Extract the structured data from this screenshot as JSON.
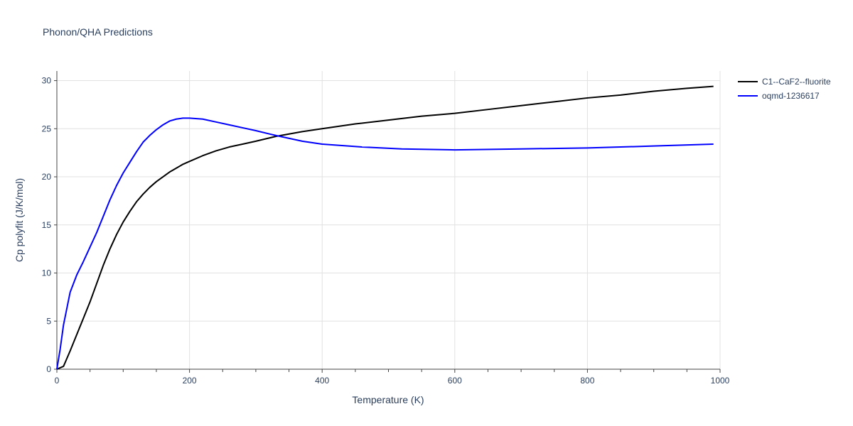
{
  "chart_data": {
    "type": "line",
    "title": "Phonon/QHA Predictions",
    "xlabel": "Temperature (K)",
    "ylabel": "Cp polyfit (J/K/mol)",
    "xlim": [
      0,
      1000
    ],
    "ylim": [
      0,
      31
    ],
    "x_ticks": [
      0,
      200,
      400,
      600,
      800,
      1000
    ],
    "x_minor_ticks": [
      50,
      100,
      150,
      250,
      300,
      350,
      450,
      500,
      550,
      650,
      700,
      750,
      850,
      900,
      950
    ],
    "y_ticks": [
      0,
      5,
      10,
      15,
      20,
      25,
      30
    ],
    "grid": true,
    "legend_position": "top-right",
    "series": [
      {
        "name": "C1--CaF2--fluorite",
        "color": "#000000",
        "x": [
          0,
          10,
          20,
          30,
          40,
          50,
          60,
          70,
          80,
          90,
          100,
          110,
          120,
          130,
          140,
          150,
          160,
          170,
          180,
          190,
          200,
          220,
          240,
          260,
          280,
          300,
          330,
          370,
          400,
          450,
          500,
          550,
          600,
          650,
          700,
          750,
          800,
          850,
          900,
          950,
          990
        ],
        "values": [
          0,
          0.3,
          1.9,
          3.6,
          5.3,
          7.0,
          8.9,
          10.8,
          12.5,
          14.0,
          15.3,
          16.4,
          17.4,
          18.2,
          18.9,
          19.5,
          20.0,
          20.5,
          20.9,
          21.3,
          21.6,
          22.2,
          22.7,
          23.1,
          23.4,
          23.7,
          24.2,
          24.7,
          25.0,
          25.5,
          25.9,
          26.3,
          26.6,
          27.0,
          27.4,
          27.8,
          28.2,
          28.5,
          28.9,
          29.2,
          29.4
        ]
      },
      {
        "name": "oqmd-1236617",
        "color": "#0000ff",
        "x": [
          0,
          5,
          10,
          20,
          30,
          40,
          50,
          60,
          70,
          80,
          90,
          100,
          110,
          120,
          130,
          140,
          150,
          160,
          170,
          180,
          190,
          200,
          220,
          240,
          260,
          280,
          300,
          330,
          370,
          400,
          460,
          520,
          600,
          700,
          800,
          900,
          990
        ],
        "values": [
          0,
          2.1,
          4.6,
          8.0,
          9.8,
          11.2,
          12.7,
          14.2,
          15.9,
          17.6,
          19.1,
          20.4,
          21.5,
          22.6,
          23.6,
          24.3,
          24.9,
          25.4,
          25.8,
          26.0,
          26.1,
          26.1,
          26.0,
          25.7,
          25.4,
          25.1,
          24.8,
          24.3,
          23.7,
          23.4,
          23.1,
          22.9,
          22.8,
          22.9,
          23.0,
          23.2,
          23.4
        ]
      }
    ]
  }
}
